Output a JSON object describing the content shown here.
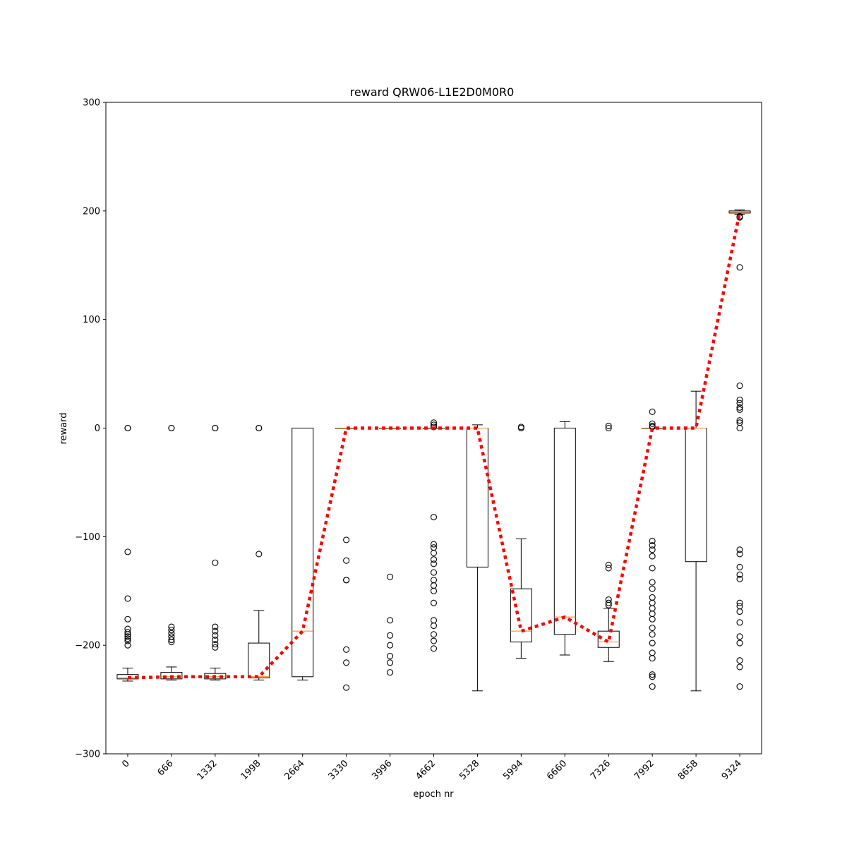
{
  "chart_data": {
    "type": "box",
    "title": "reward QRW06-L1E2D0M0R0",
    "xlabel": "epoch nr",
    "ylabel": "reward",
    "ylim": [
      -300,
      300
    ],
    "yticks": [
      -300,
      -200,
      -100,
      0,
      100,
      200,
      300
    ],
    "yticklabels": [
      "−300",
      "−200",
      "−100",
      "0",
      "100",
      "200",
      "300"
    ],
    "grid": false,
    "legend": "none",
    "categories": [
      "0",
      "666",
      "1332",
      "1998",
      "2664",
      "3330",
      "3996",
      "4662",
      "5328",
      "5994",
      "6660",
      "7326",
      "7992",
      "8658",
      "9324"
    ],
    "boxes": [
      {
        "q1": -231,
        "median": -230,
        "q3": -227,
        "whislo": -233,
        "whishi": -221,
        "fliers": [
          0,
          0,
          -114,
          -157,
          -176,
          -185,
          -188,
          -190,
          -192,
          -194,
          -196,
          -200
        ]
      },
      {
        "q1": -231,
        "median": -229,
        "q3": -225,
        "whislo": -232,
        "whishi": -220,
        "fliers": [
          0,
          0,
          -183,
          -186,
          -189,
          -192,
          -195,
          -197
        ]
      },
      {
        "q1": -231,
        "median": -229,
        "q3": -226,
        "whislo": -232,
        "whishi": -221,
        "fliers": [
          0,
          0,
          -124,
          -183,
          -187,
          -191,
          -195,
          -199,
          -202
        ]
      },
      {
        "q1": -230,
        "median": -229,
        "q3": -198,
        "whislo": -232,
        "whishi": -168,
        "fliers": [
          0,
          0,
          -116
        ]
      },
      {
        "q1": -229,
        "median": -187,
        "q3": 0,
        "whislo": -232,
        "whishi": 0,
        "fliers": []
      },
      {
        "q1": 0,
        "median": 0,
        "q3": 0,
        "whislo": 0,
        "whishi": 0,
        "fliers": [
          -103,
          -122,
          -140,
          -140,
          -204,
          -216,
          -239
        ]
      },
      {
        "q1": 0,
        "median": 0,
        "q3": 0,
        "whislo": 0,
        "whishi": 0,
        "fliers": [
          -137,
          -177,
          -191,
          -200,
          -210,
          -216,
          -225
        ]
      },
      {
        "q1": 0,
        "median": 0,
        "q3": 0,
        "whislo": 0,
        "whishi": 0,
        "fliers": [
          5,
          3,
          1,
          -82,
          -107,
          -110,
          -115,
          -121,
          -125,
          -133,
          -140,
          -145,
          -150,
          -161,
          -177,
          -182,
          -190,
          -196,
          -203
        ]
      },
      {
        "q1": -128,
        "median": 0,
        "q3": 0,
        "whislo": -242,
        "whishi": 3,
        "fliers": []
      },
      {
        "q1": -197,
        "median": -187,
        "q3": -148,
        "whislo": -212,
        "whishi": -102,
        "fliers": [
          1,
          0
        ]
      },
      {
        "q1": -190,
        "median": -174,
        "q3": 0,
        "whislo": -209,
        "whishi": 6,
        "fliers": []
      },
      {
        "q1": -202,
        "median": -197,
        "q3": -187,
        "whislo": -215,
        "whishi": -166,
        "fliers": [
          2,
          0,
          -126,
          -129,
          -158,
          -161,
          -163
        ]
      },
      {
        "q1": 0,
        "median": 0,
        "q3": 0,
        "whislo": 0,
        "whishi": 0,
        "fliers": [
          15,
          4,
          2,
          1,
          -104,
          -108,
          -112,
          -118,
          -129,
          -142,
          -148,
          -156,
          -161,
          -166,
          -171,
          -176,
          -184,
          -190,
          -198,
          -207,
          -212,
          -227,
          -229,
          -238
        ]
      },
      {
        "q1": -123,
        "median": 0,
        "q3": 0,
        "whislo": -242,
        "whishi": 34,
        "fliers": []
      },
      {
        "q1": 198,
        "median": 199,
        "q3": 200,
        "whislo": 197,
        "whishi": 201,
        "fliers": [
          195,
          194,
          148,
          39,
          26,
          23,
          19,
          17,
          7,
          5,
          0,
          -112,
          -116,
          -128,
          -135,
          -139,
          -161,
          -164,
          -169,
          -179,
          -192,
          -198,
          -214,
          -220,
          -238
        ]
      }
    ],
    "mean_line": {
      "style": "dotted",
      "color": "#ff0000",
      "values": [
        -230,
        -229,
        -229,
        -229,
        -187,
        0,
        0,
        0,
        0,
        -187,
        -174,
        -197,
        0,
        0,
        199
      ]
    },
    "colors": {
      "box": "#000000",
      "median": "#ff7f0e",
      "flier": "#000000"
    }
  }
}
